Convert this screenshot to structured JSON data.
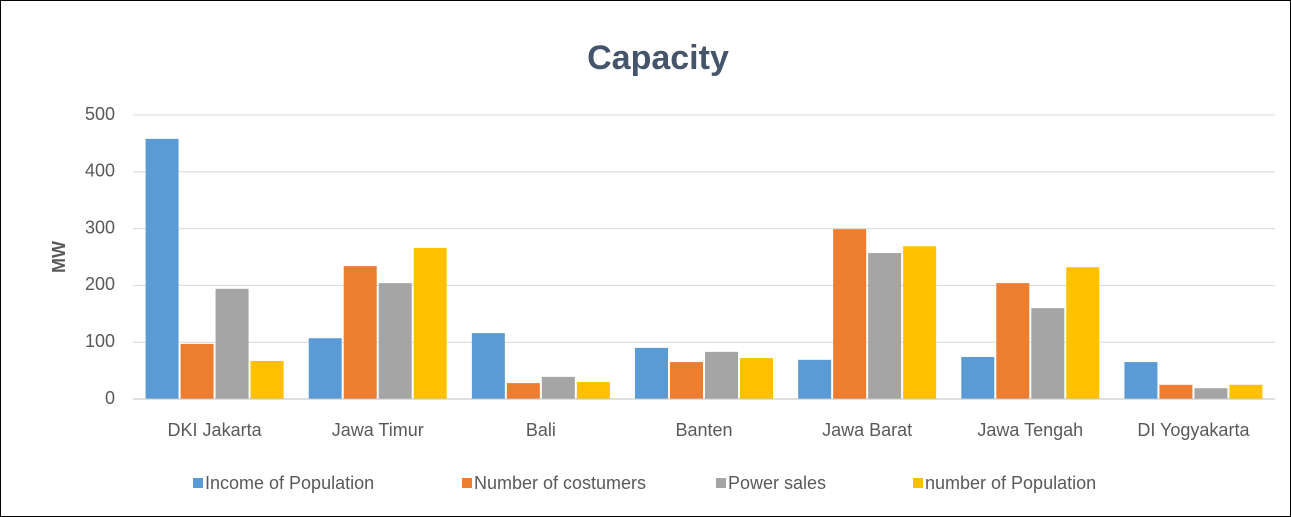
{
  "chart_data": {
    "type": "bar",
    "title": "Capacity",
    "y_label": "MW",
    "categories": [
      "DKI Jakarta",
      "Jawa Timur",
      "Bali",
      "Banten",
      "Jawa Barat",
      "Jawa Tengah",
      "DI Yogyakarta"
    ],
    "series": [
      {
        "name": "Income of Population",
        "color": "#5b9bd5",
        "values": [
          458,
          107,
          116,
          90,
          69,
          74,
          65
        ]
      },
      {
        "name": "Number of costumers",
        "color": "#ed7d31",
        "values": [
          97,
          234,
          28,
          65,
          299,
          204,
          25
        ]
      },
      {
        "name": "Power sales",
        "color": "#a5a5a5",
        "values": [
          194,
          204,
          39,
          83,
          257,
          160,
          19
        ]
      },
      {
        "name": "number of Population",
        "color": "#ffc000",
        "values": [
          67,
          266,
          30,
          72,
          269,
          232,
          25
        ]
      }
    ],
    "ylim": [
      0,
      500
    ],
    "yticks": [
      0,
      100,
      200,
      300,
      400,
      500
    ],
    "grid": true,
    "legend": "bottom"
  }
}
